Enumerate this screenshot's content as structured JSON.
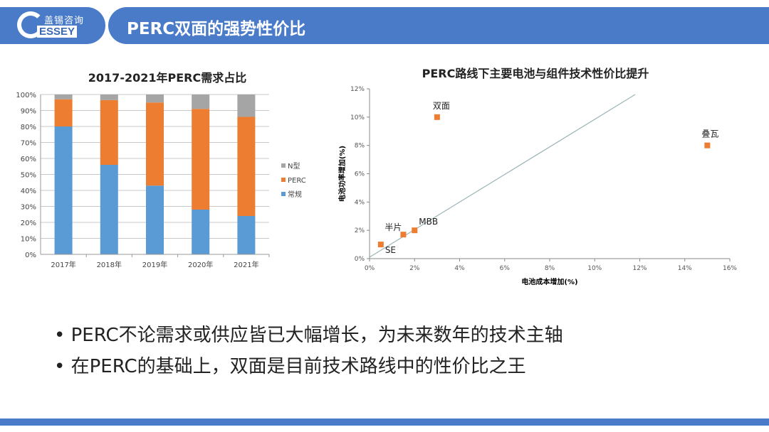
{
  "logo": {
    "cn": "盖锡咨询",
    "en": "ESSEY"
  },
  "title": "PERC双面的强势性价比",
  "bullets": [
    "PERC不论需求或供应皆已大幅增长，为未来数年的技术主轴",
    "在PERC的基础上，双面是目前技术路线中的性价比之王"
  ],
  "colors": {
    "brand": "#4a7bc8",
    "normal": "#5b9bd5",
    "perc": "#ed7d31",
    "ntype": "#a5a5a5"
  },
  "chart_data": [
    {
      "type": "bar",
      "stacked": true,
      "title": "2017-2021年PERC需求占比",
      "categories": [
        "2017年",
        "2018年",
        "2019年",
        "2020年",
        "2021年"
      ],
      "series": [
        {
          "name": "常规",
          "values": [
            80,
            56,
            43,
            28,
            24
          ]
        },
        {
          "name": "PERC",
          "values": [
            17,
            40.5,
            52,
            63,
            62
          ]
        },
        {
          "name": "N型",
          "values": [
            3,
            3.5,
            5,
            9,
            14
          ]
        }
      ],
      "ylim": [
        0,
        100
      ],
      "yticks": [
        "0%",
        "10%",
        "20%",
        "30%",
        "40%",
        "50%",
        "60%",
        "70%",
        "80%",
        "90%",
        "100%"
      ],
      "legend": "right",
      "grid": true
    },
    {
      "type": "scatter",
      "title": "PERC路线下主要电池与组件技术性价比提升",
      "xlabel": "电池成本增加(%)",
      "ylabel": "电池功率增加(%)",
      "xlim": [
        0,
        16
      ],
      "ylim": [
        0,
        12
      ],
      "xticks": [
        "0%",
        "2%",
        "4%",
        "6%",
        "8%",
        "10%",
        "12%",
        "14%",
        "16%"
      ],
      "yticks": [
        "0%",
        "2%",
        "4%",
        "6%",
        "8%",
        "10%",
        "12%"
      ],
      "points": [
        {
          "label": "SE",
          "x": 0.5,
          "y": 1.0
        },
        {
          "label": "半片",
          "x": 1.5,
          "y": 1.7
        },
        {
          "label": "MBB",
          "x": 2,
          "y": 2
        },
        {
          "label": "双面",
          "x": 3,
          "y": 10
        },
        {
          "label": "叠瓦",
          "x": 15,
          "y": 8
        }
      ],
      "reference_line": [
        [
          0,
          0.1
        ],
        [
          11.8,
          11.6
        ]
      ]
    }
  ]
}
